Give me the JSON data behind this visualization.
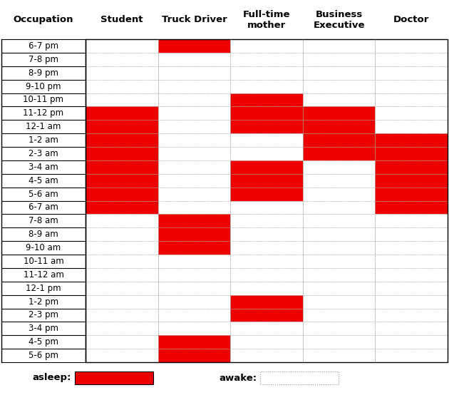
{
  "time_slots": [
    "6-7 pm",
    "7-8 pm",
    "8-9 pm",
    "9-10 pm",
    "10-11 pm",
    "11-12 pm",
    "12-1 am",
    "1-2 am",
    "2-3 am",
    "3-4 am",
    "4-5 am",
    "5-6 am",
    "6-7 am",
    "7-8 am",
    "8-9 am",
    "9-10 am",
    "10-11 am",
    "11-12 am",
    "12-1 pm",
    "1-2 pm",
    "2-3 pm",
    "3-4 pm",
    "4-5 pm",
    "5-6 pm"
  ],
  "occupations": [
    "Student",
    "Truck Driver",
    "Full-time\nmother",
    "Business\nExecutive",
    "Doctor"
  ],
  "sleep_data": {
    "Student": [
      0,
      0,
      0,
      0,
      0,
      1,
      1,
      1,
      1,
      1,
      1,
      1,
      1,
      0,
      0,
      0,
      0,
      0,
      0,
      0,
      0,
      0,
      0,
      0
    ],
    "Truck Driver": [
      1,
      0,
      0,
      0,
      0,
      0,
      0,
      0,
      0,
      0,
      0,
      0,
      0,
      1,
      1,
      1,
      0,
      0,
      0,
      0,
      0,
      0,
      1,
      1
    ],
    "Full-time\nmother": [
      0,
      0,
      0,
      0,
      1,
      1,
      1,
      0,
      0,
      1,
      1,
      1,
      0,
      0,
      0,
      0,
      0,
      0,
      0,
      1,
      1,
      0,
      0,
      0
    ],
    "Business\nExecutive": [
      0,
      0,
      0,
      0,
      0,
      1,
      1,
      1,
      1,
      0,
      0,
      0,
      0,
      0,
      0,
      0,
      0,
      0,
      0,
      0,
      0,
      0,
      0,
      0
    ],
    "Doctor": [
      0,
      0,
      0,
      0,
      0,
      0,
      0,
      1,
      1,
      1,
      1,
      1,
      1,
      0,
      0,
      0,
      0,
      0,
      0,
      0,
      0,
      0,
      0,
      0
    ]
  },
  "sleep_color": "#EE0000",
  "grid_color": "#999999",
  "legend_label_asleep": "asleep:",
  "legend_label_awake": "awake:",
  "header_fontsize": 9.5,
  "cell_fontsize": 8.5,
  "legend_fontsize": 9.5,
  "fig_width": 6.3,
  "fig_height": 5.61,
  "dpi": 100
}
